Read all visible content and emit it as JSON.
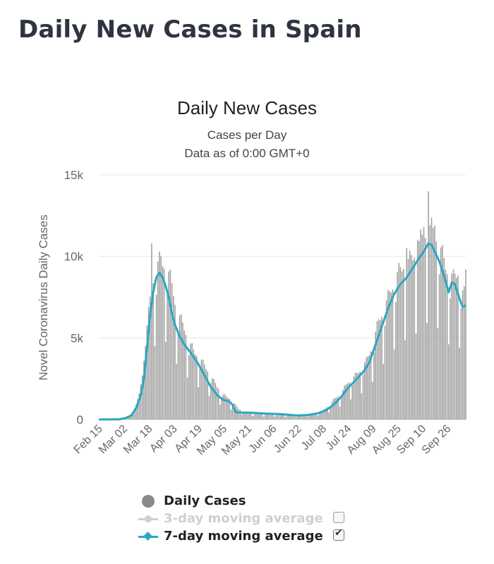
{
  "page": {
    "title": "Daily New Cases in Spain"
  },
  "chart_data": {
    "type": "bar",
    "title": "Daily New Cases",
    "subtitle_1": "Cases per Day",
    "subtitle_2": "Data as of 0:00 GMT+0",
    "ylabel": "Novel Coronavirus Daily Cases",
    "ylim": [
      0,
      15000
    ],
    "y_ticks": [
      0,
      5000,
      10000,
      15000
    ],
    "y_tick_labels": [
      "0",
      "5k",
      "10k",
      "15k"
    ],
    "x_range": [
      "2020-02-15",
      "2020-10-08"
    ],
    "x_tick_labels": [
      "Feb 15",
      "Mar 02",
      "Mar 18",
      "Apr 03",
      "Apr 19",
      "May 05",
      "May 21",
      "Jun 06",
      "Jun 22",
      "Jul 08",
      "Jul 24",
      "Aug 09",
      "Aug 25",
      "Sep 10",
      "Sep 26"
    ],
    "grid": true,
    "colors": {
      "bars": "#9e9e9e",
      "ma7": "#2aa7c2",
      "ma3": "#cfcfcf",
      "axis_text": "#666666"
    },
    "daily_anchors": [
      [
        "2020-02-15",
        0
      ],
      [
        "2020-02-28",
        20
      ],
      [
        "2020-03-02",
        60
      ],
      [
        "2020-03-04",
        120
      ],
      [
        "2020-03-06",
        250
      ],
      [
        "2020-03-08",
        500
      ],
      [
        "2020-03-10",
        900
      ],
      [
        "2020-03-12",
        1600
      ],
      [
        "2020-03-14",
        2700
      ],
      [
        "2020-03-16",
        4500
      ],
      [
        "2020-03-18",
        6000
      ],
      [
        "2020-03-20",
        7700
      ],
      [
        "2020-03-22",
        8200
      ],
      [
        "2020-03-24",
        8800
      ],
      [
        "2020-03-26",
        9100
      ],
      [
        "2020-03-28",
        8800
      ],
      [
        "2020-03-30",
        8500
      ],
      [
        "2020-04-01",
        8000
      ],
      [
        "2020-04-03",
        7200
      ],
      [
        "2020-04-05",
        6200
      ],
      [
        "2020-04-07",
        5800
      ],
      [
        "2020-04-10",
        5200
      ],
      [
        "2020-04-13",
        4400
      ],
      [
        "2020-04-16",
        3900
      ],
      [
        "2020-04-19",
        3600
      ],
      [
        "2020-04-22",
        3200
      ],
      [
        "2020-04-25",
        2800
      ],
      [
        "2020-04-28",
        2300
      ],
      [
        "2020-05-01",
        1900
      ],
      [
        "2020-05-05",
        1400
      ],
      [
        "2020-05-09",
        1200
      ],
      [
        "2020-05-12",
        900
      ],
      [
        "2020-05-15",
        600
      ],
      [
        "2020-05-19",
        450
      ],
      [
        "2020-05-21",
        400
      ],
      [
        "2020-05-26",
        350
      ],
      [
        "2020-06-01",
        330
      ],
      [
        "2020-06-06",
        320
      ],
      [
        "2020-06-12",
        300
      ],
      [
        "2020-06-18",
        260
      ],
      [
        "2020-06-22",
        250
      ],
      [
        "2020-06-28",
        300
      ],
      [
        "2020-07-03",
        380
      ],
      [
        "2020-07-08",
        500
      ],
      [
        "2020-07-12",
        800
      ],
      [
        "2020-07-16",
        1200
      ],
      [
        "2020-07-20",
        1500
      ],
      [
        "2020-07-24",
        2100
      ],
      [
        "2020-07-28",
        2400
      ],
      [
        "2020-08-01",
        2800
      ],
      [
        "2020-08-05",
        3300
      ],
      [
        "2020-08-09",
        4200
      ],
      [
        "2020-08-13",
        5600
      ],
      [
        "2020-08-17",
        6400
      ],
      [
        "2020-08-21",
        7400
      ],
      [
        "2020-08-25",
        8200
      ],
      [
        "2020-08-29",
        8800
      ],
      [
        "2020-09-02",
        9000
      ],
      [
        "2020-09-06",
        9600
      ],
      [
        "2020-09-10",
        10300
      ],
      [
        "2020-09-14",
        10900
      ],
      [
        "2020-09-18",
        10600
      ],
      [
        "2020-09-20",
        10200
      ],
      [
        "2020-09-24",
        9000
      ],
      [
        "2020-09-26",
        8500
      ],
      [
        "2020-09-30",
        8000
      ],
      [
        "2020-10-03",
        8400
      ],
      [
        "2020-10-06",
        7200
      ],
      [
        "2020-10-08",
        7000
      ]
    ],
    "ma7": [
      [
        "2020-02-15",
        0
      ],
      [
        "2020-02-28",
        10
      ],
      [
        "2020-03-03",
        80
      ],
      [
        "2020-03-07",
        250
      ],
      [
        "2020-03-10",
        700
      ],
      [
        "2020-03-13",
        1500
      ],
      [
        "2020-03-15",
        2500
      ],
      [
        "2020-03-17",
        4400
      ],
      [
        "2020-03-19",
        6400
      ],
      [
        "2020-03-21",
        7800
      ],
      [
        "2020-03-23",
        8700
      ],
      [
        "2020-03-25",
        9000
      ],
      [
        "2020-03-27",
        8700
      ],
      [
        "2020-03-29",
        8200
      ],
      [
        "2020-03-31",
        7500
      ],
      [
        "2020-04-02",
        6500
      ],
      [
        "2020-04-04",
        5800
      ],
      [
        "2020-04-07",
        5100
      ],
      [
        "2020-04-10",
        4600
      ],
      [
        "2020-04-14",
        4100
      ],
      [
        "2020-04-19",
        3400
      ],
      [
        "2020-04-23",
        2700
      ],
      [
        "2020-04-27",
        2000
      ],
      [
        "2020-05-01",
        1500
      ],
      [
        "2020-05-05",
        1200
      ],
      [
        "2020-05-09",
        1100
      ],
      [
        "2020-05-11",
        900
      ],
      [
        "2020-05-13",
        450
      ],
      [
        "2020-05-16",
        420
      ],
      [
        "2020-05-21",
        420
      ],
      [
        "2020-05-26",
        400
      ],
      [
        "2020-06-02",
        360
      ],
      [
        "2020-06-09",
        340
      ],
      [
        "2020-06-15",
        300
      ],
      [
        "2020-06-22",
        240
      ],
      [
        "2020-06-29",
        280
      ],
      [
        "2020-07-05",
        380
      ],
      [
        "2020-07-10",
        560
      ],
      [
        "2020-07-15",
        900
      ],
      [
        "2020-07-20",
        1400
      ],
      [
        "2020-07-24",
        1900
      ],
      [
        "2020-07-29",
        2400
      ],
      [
        "2020-08-03",
        2900
      ],
      [
        "2020-08-07",
        3500
      ],
      [
        "2020-08-11",
        4600
      ],
      [
        "2020-08-15",
        5700
      ],
      [
        "2020-08-19",
        6800
      ],
      [
        "2020-08-23",
        7700
      ],
      [
        "2020-08-27",
        8300
      ],
      [
        "2020-08-31",
        8700
      ],
      [
        "2020-09-04",
        9300
      ],
      [
        "2020-09-08",
        9900
      ],
      [
        "2020-09-11",
        10300
      ],
      [
        "2020-09-14",
        10800
      ],
      [
        "2020-09-16",
        10700
      ],
      [
        "2020-09-18",
        10300
      ],
      [
        "2020-09-21",
        9700
      ],
      [
        "2020-09-24",
        8800
      ],
      [
        "2020-09-27",
        7800
      ],
      [
        "2020-09-29",
        8400
      ],
      [
        "2020-10-01",
        8300
      ],
      [
        "2020-10-04",
        7400
      ],
      [
        "2020-10-06",
        6900
      ],
      [
        "2020-10-08",
        7000
      ]
    ],
    "spikes": [
      [
        "2020-03-20",
        10800
      ],
      [
        "2020-09-11",
        11800
      ],
      [
        "2020-09-14",
        14000
      ],
      [
        "2020-09-18",
        11900
      ],
      [
        "2020-10-08",
        9200
      ],
      [
        "2020-09-07",
        11000
      ],
      [
        "2020-08-31",
        10500
      ]
    ],
    "legend": [
      {
        "label": "Daily Cases",
        "symbol": "dot",
        "active": true
      },
      {
        "label": "3-day moving average",
        "symbol": "line-dot",
        "active": false,
        "checked": false
      },
      {
        "label": "7-day moving average",
        "symbol": "line-diamond",
        "active": true,
        "checked": true
      }
    ],
    "legend_placement": "bottom"
  }
}
